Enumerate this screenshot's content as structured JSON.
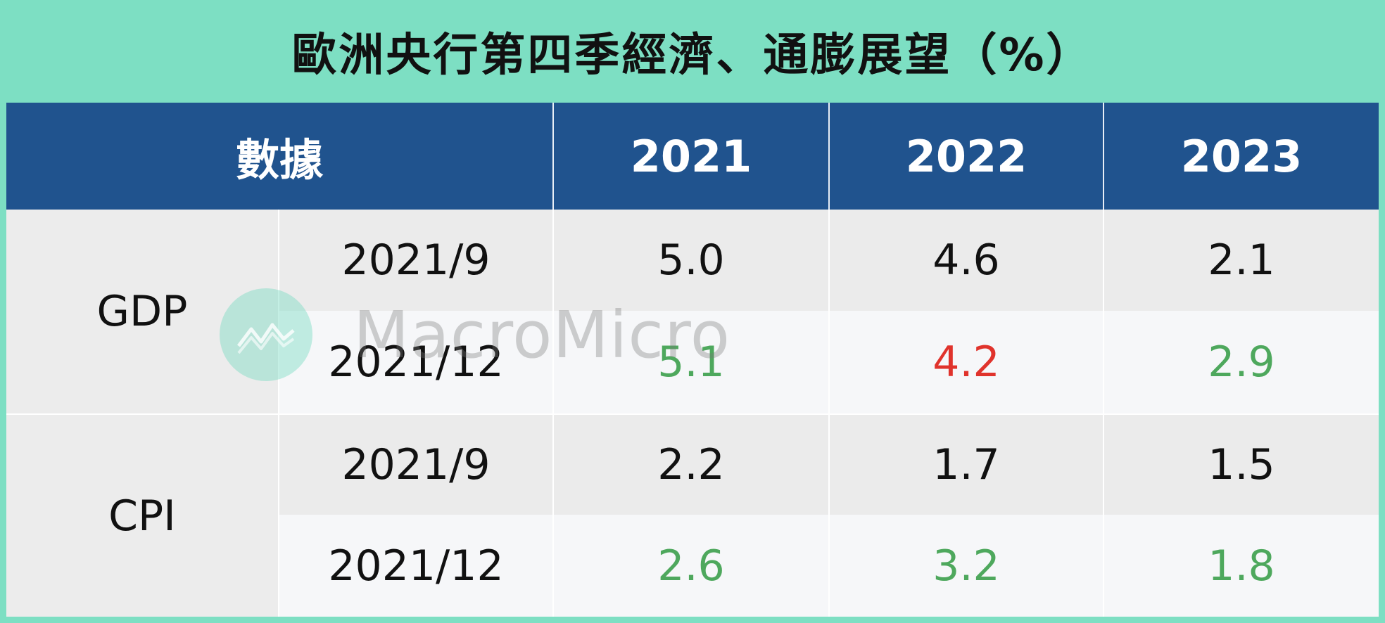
{
  "title": "歐洲央行第四季經濟、通膨展望（%）",
  "header": {
    "data_label": "數據",
    "years": [
      "2021",
      "2022",
      "2023"
    ]
  },
  "groups": [
    {
      "label": "GDP",
      "rows": [
        {
          "period": "2021/9",
          "values": [
            "5.0",
            "4.6",
            "2.1"
          ]
        },
        {
          "period": "2021/12",
          "values": [
            "5.1",
            "4.2",
            "2.9"
          ]
        }
      ]
    },
    {
      "label": "CPI",
      "rows": [
        {
          "period": "2021/9",
          "values": [
            "2.2",
            "1.7",
            "1.5"
          ]
        },
        {
          "period": "2021/12",
          "values": [
            "2.6",
            "3.2",
            "1.8"
          ]
        }
      ]
    }
  ],
  "watermark": {
    "text": "MacroMicro",
    "icon": "macromicro-logo-icon"
  },
  "colors": {
    "background": "#7ddfc3",
    "header": "#20538e",
    "up": "#4ea85d",
    "down": "#e0332c"
  }
}
